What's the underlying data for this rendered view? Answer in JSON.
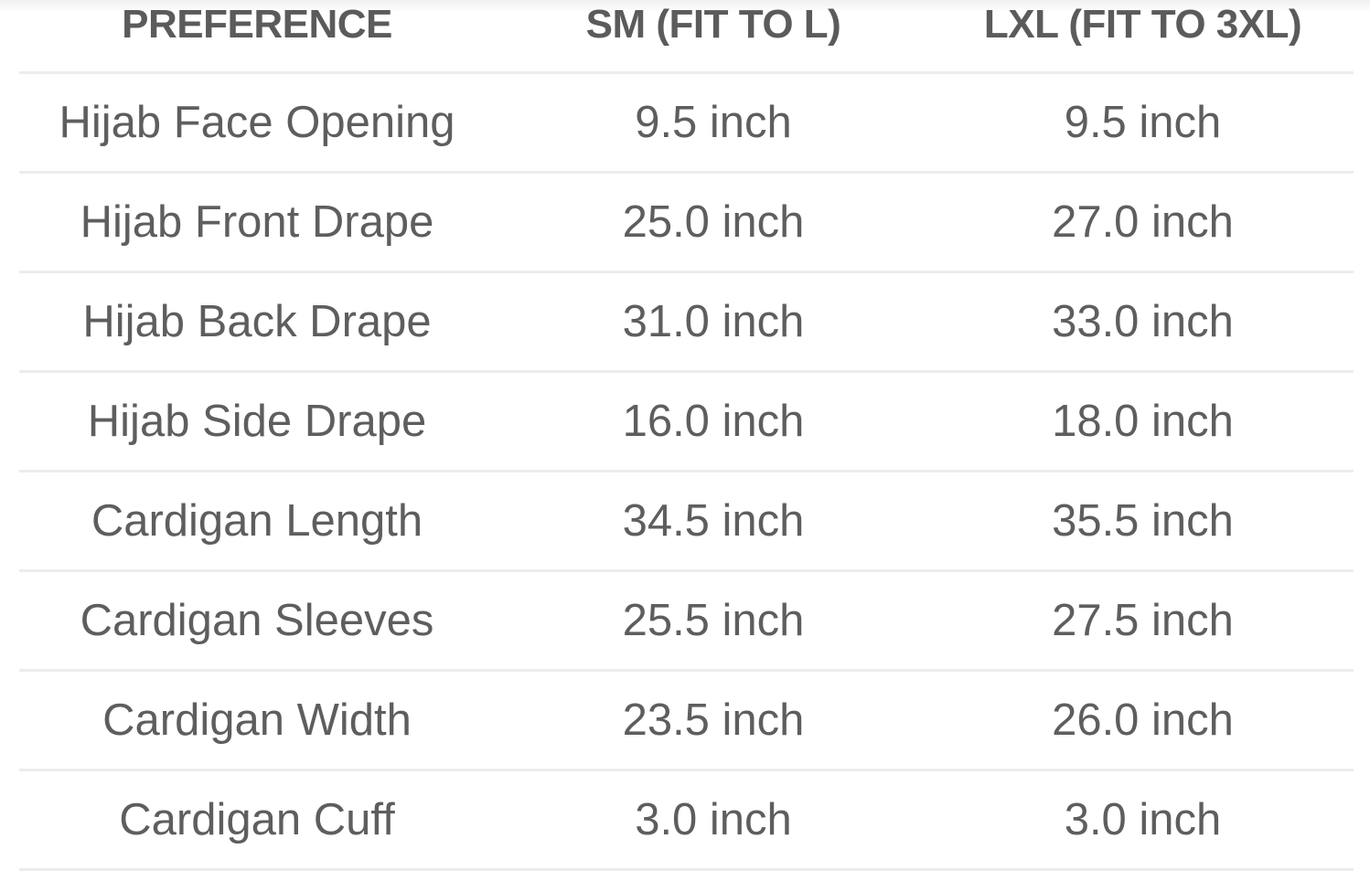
{
  "table": {
    "headers": [
      "PREFERENCE",
      "SM (FIT TO L)",
      "LXL (FIT TO 3XL)"
    ],
    "rows": [
      [
        "Hijab Face Opening",
        "9.5 inch",
        "9.5 inch"
      ],
      [
        "Hijab Front Drape",
        "25.0 inch",
        "27.0 inch"
      ],
      [
        "Hijab Back Drape",
        "31.0 inch",
        "33.0 inch"
      ],
      [
        "Hijab Side Drape",
        "16.0 inch",
        "18.0 inch"
      ],
      [
        "Cardigan Length",
        "34.5 inch",
        "35.5 inch"
      ],
      [
        "Cardigan Sleeves",
        "25.5 inch",
        "27.5 inch"
      ],
      [
        "Cardigan Width",
        "23.5 inch",
        "26.0 inch"
      ],
      [
        "Cardigan Cuff",
        "3.0 inch",
        "3.0 inch"
      ]
    ]
  }
}
